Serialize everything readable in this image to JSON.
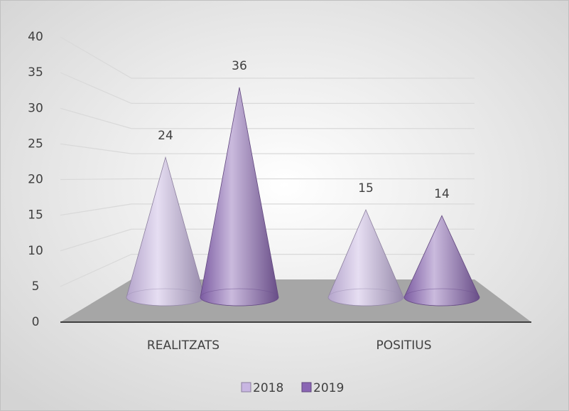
{
  "chart_data": {
    "type": "cone",
    "categories": [
      "REALITZATS",
      "POSITIUS"
    ],
    "series": [
      {
        "name": "2018",
        "color": "#c8b6e2",
        "values": [
          24,
          15
        ]
      },
      {
        "name": "2019",
        "color": "#8a66b4",
        "values": [
          36,
          14
        ]
      }
    ],
    "ylim": [
      0,
      40
    ],
    "yticks": [
      0,
      5,
      10,
      15,
      20,
      25,
      30,
      35,
      40
    ],
    "grid": true,
    "legend": "bottom"
  }
}
